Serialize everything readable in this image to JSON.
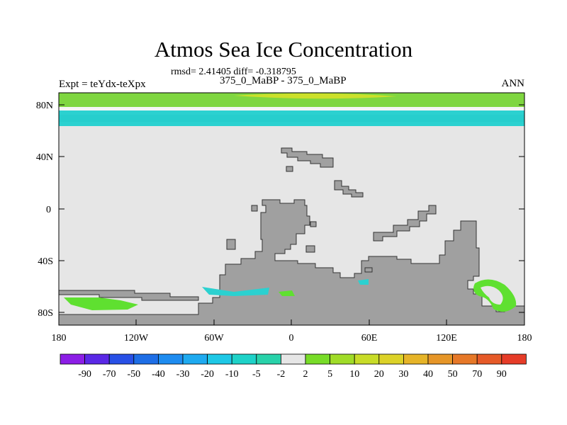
{
  "title": "Atmos Sea Ice Concentration",
  "stats": "rmsd= 2.41405 diff= -0.318795",
  "subtitle": "375_0_MaBP - 375_0_MaBP",
  "expt_label": "Expt = teYdx-teXpx",
  "season": "ANN",
  "colors": {
    "land": "#a0a0a0",
    "background": "#e6e6e6",
    "arctic_green": "#7fd640",
    "arctic_yellow": "#cce02a",
    "arctic_cyan": "#2bd1d0",
    "antarctic_green": "#5fe030"
  },
  "y_axis_labels": [
    "80N",
    "40N",
    "0",
    "40S",
    "80S"
  ],
  "x_axis_labels": [
    "180",
    "120W",
    "60W",
    "0",
    "60E",
    "120E",
    "180"
  ],
  "colorbar": {
    "labels": [
      "-90",
      "-70",
      "-50",
      "-40",
      "-30",
      "-20",
      "-10",
      "-5",
      "-2",
      "2",
      "5",
      "10",
      "20",
      "30",
      "40",
      "50",
      "70",
      "90"
    ],
    "colors": [
      "#8c1ee6",
      "#5a28e6",
      "#2850e6",
      "#1e6ee6",
      "#1e8cf0",
      "#1eaaf0",
      "#1ec8e6",
      "#1ed2c8",
      "#28d2aa",
      "#e6e6e6",
      "#78dc28",
      "#a0dc28",
      "#c8dc28",
      "#dcd228",
      "#e6b428",
      "#e69628",
      "#e67828",
      "#e65a28",
      "#e63c28"
    ]
  }
}
